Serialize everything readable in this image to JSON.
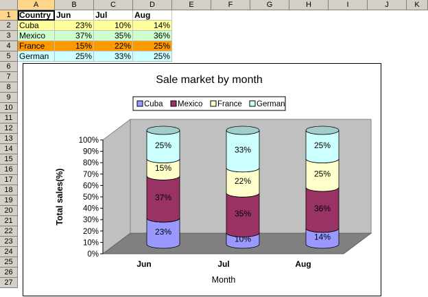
{
  "columns": [
    "A",
    "B",
    "C",
    "D",
    "E",
    "F",
    "G",
    "H",
    "I",
    "J",
    "K"
  ],
  "rows": [
    "1",
    "2",
    "3",
    "4",
    "5",
    "6",
    "7",
    "8",
    "9",
    "10",
    "11",
    "12",
    "13",
    "14",
    "15",
    "16",
    "17",
    "18",
    "19",
    "20",
    "21",
    "22",
    "23",
    "24",
    "25",
    "26",
    "27"
  ],
  "table": {
    "headers": [
      "Country",
      "Jun",
      "Jul",
      "Aug"
    ],
    "data": [
      {
        "country": "Cuba",
        "jun": "23%",
        "jul": "10%",
        "aug": "14%"
      },
      {
        "country": "Mexico",
        "jun": "37%",
        "jul": "35%",
        "aug": "36%"
      },
      {
        "country": "France",
        "jun": "15%",
        "jul": "22%",
        "aug": "25%"
      },
      {
        "country": "German",
        "jun": "25%",
        "jul": "33%",
        "aug": "25%"
      }
    ]
  },
  "colors": {
    "cuba": "#ffff99",
    "mexico": "#ccffcc",
    "france": "#ff9900",
    "german": "#ccffff",
    "cuba_bar": "#9999ff",
    "mexico_bar": "#993366",
    "france_bar": "#ffffcc",
    "german_bar": "#ccffff",
    "header_bg": "#d4d0c8",
    "active_header": "#ffd58a",
    "chart_wall": "#c0c0c0",
    "chart_floor": "#808080"
  },
  "chart_data": {
    "type": "bar",
    "stacked": true,
    "stacked_percent": true,
    "title": "Sale market by month",
    "xlabel": "Month",
    "ylabel": "Total sales(%)",
    "ylim": [
      0,
      100
    ],
    "yticks": [
      "0%",
      "10%",
      "20%",
      "30%",
      "40%",
      "50%",
      "60%",
      "70%",
      "80%",
      "90%",
      "100%"
    ],
    "categories": [
      "Jun",
      "Jul",
      "Aug"
    ],
    "series": [
      {
        "name": "Cuba",
        "values": [
          23,
          10,
          14
        ],
        "labels": [
          "23%",
          "10%",
          "14%"
        ],
        "color": "#9999ff"
      },
      {
        "name": "Mexico",
        "values": [
          37,
          35,
          36
        ],
        "labels": [
          "37%",
          "35%",
          "36%"
        ],
        "color": "#993366"
      },
      {
        "name": "France",
        "values": [
          15,
          22,
          25
        ],
        "labels": [
          "15%",
          "22%",
          "25%"
        ],
        "color": "#ffffcc"
      },
      {
        "name": "German",
        "values": [
          25,
          33,
          25
        ],
        "labels": [
          "25%",
          "33%",
          "25%"
        ],
        "color": "#ccffff"
      }
    ],
    "legend_position": "top",
    "grid": false,
    "shape": "3d-cylinder"
  }
}
